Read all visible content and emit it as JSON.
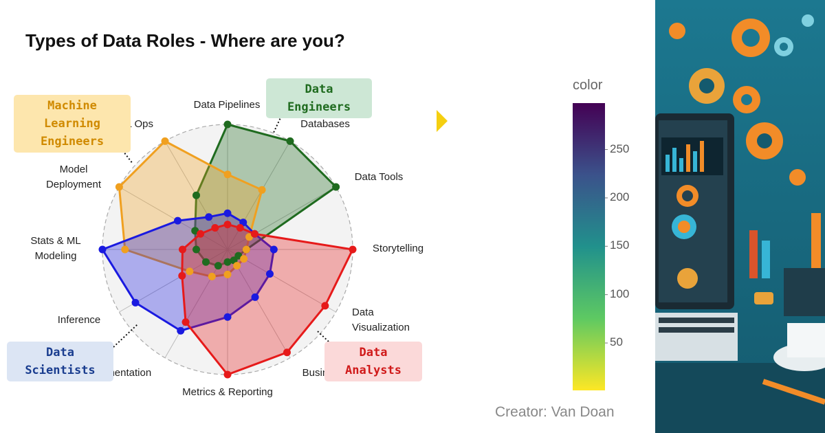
{
  "header": {
    "title": "Types of Data Roles  - Where are you?",
    "credit": "Creator: Van Doan"
  },
  "chart_data": [
    {
      "type": "radar",
      "categories": [
        "Data Pipelines",
        "Databases",
        "Data Tools",
        "Storytelling",
        "Data Visualization",
        "Business Insights",
        "Metrics & Reporting",
        "Experimentation",
        "Inference",
        "Stats & ML Modeling",
        "Model Deployment",
        "ML Ops"
      ],
      "rlim": [
        0,
        10
      ],
      "grid": true,
      "series": [
        {
          "name": "Data Engineers",
          "color": "#1f6b1f",
          "values": [
            10,
            10,
            10,
            1.5,
            1,
            1,
            1,
            1.5,
            2,
            2.5,
            3,
            5
          ]
        },
        {
          "name": "Machine Learning Engineers",
          "color": "#f0a020",
          "values": [
            6,
            5.5,
            2,
            1.5,
            1.5,
            1.5,
            2,
            2.5,
            3.5,
            8.2,
            10,
            10
          ]
        },
        {
          "name": "Data Scientists",
          "color": "#1a1ae0",
          "values": [
            2.9,
            2.5,
            2.5,
            3.7,
            3.9,
            4.4,
            5.4,
            7.5,
            8.5,
            10,
            4.6,
            3
          ]
        },
        {
          "name": "Data Analysts",
          "color": "#e61a1a",
          "values": [
            2,
            2,
            2.5,
            10,
            9,
            9.5,
            10,
            6.7,
            4.2,
            3.6,
            2.5,
            2
          ]
        }
      ]
    },
    {
      "type": "colorbar",
      "title": "color",
      "zlim": [
        1,
        298
      ],
      "ticks": [
        50,
        100,
        150,
        200,
        250
      ],
      "colors": [
        "#440154",
        "#3b528b",
        "#21918c",
        "#5ec962",
        "#fde725"
      ]
    }
  ]
}
